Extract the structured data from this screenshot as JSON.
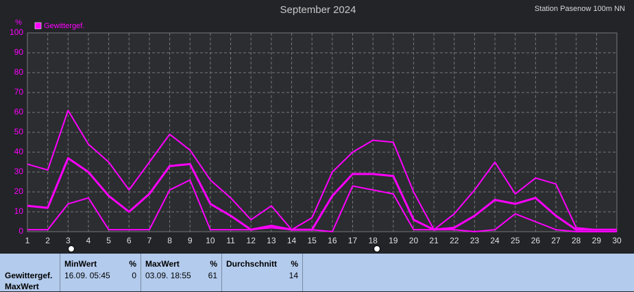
{
  "chart_data": {
    "type": "line",
    "title": "September 2024",
    "station": "Station Pasenow 100m NN",
    "y_label": "%",
    "x": [
      1,
      2,
      3,
      4,
      5,
      6,
      7,
      8,
      9,
      10,
      11,
      12,
      13,
      14,
      15,
      16,
      17,
      18,
      19,
      20,
      21,
      22,
      23,
      24,
      25,
      26,
      27,
      28,
      29,
      30
    ],
    "series": [
      {
        "name": "Gewittergef.",
        "color": "#ff00ff",
        "values": [
          13,
          12,
          37,
          30,
          18,
          10,
          19,
          33,
          34,
          14,
          8,
          1,
          3,
          1,
          1,
          18,
          29,
          29,
          28,
          6,
          1,
          2,
          8,
          16,
          14,
          17,
          8,
          1,
          1,
          1
        ],
        "max": [
          34,
          31,
          61,
          44,
          35,
          21,
          35,
          49,
          41,
          26,
          17,
          6,
          13,
          1,
          7,
          30,
          40,
          46,
          45,
          20,
          1,
          9,
          21,
          35,
          19,
          27,
          24,
          2,
          1,
          1
        ],
        "min": [
          1,
          1,
          14,
          17,
          1,
          1,
          1,
          21,
          26,
          1,
          1,
          1,
          2,
          1,
          1,
          0,
          23,
          21,
          19,
          1,
          1,
          1,
          0,
          1,
          9,
          5,
          1,
          0,
          0,
          0
        ]
      }
    ],
    "xlim": [
      1,
      30
    ],
    "xticks": [
      1,
      2,
      3,
      4,
      5,
      6,
      7,
      8,
      9,
      10,
      11,
      12,
      13,
      14,
      15,
      16,
      17,
      18,
      19,
      20,
      21,
      22,
      23,
      24,
      25,
      26,
      27,
      28,
      29,
      30
    ],
    "ylim": [
      0,
      100
    ],
    "yticks": [
      0,
      10,
      20,
      30,
      40,
      50,
      60,
      70,
      80,
      90,
      100
    ],
    "grid": true
  },
  "stats": {
    "label": [
      "Gewittergef.",
      "MaxWert"
    ],
    "columns": [
      {
        "title": "MinWert",
        "unit": "%",
        "time": "16.09.  05:45",
        "value": "0"
      },
      {
        "title": "MaxWert",
        "unit": "%",
        "time": "03.09.  18:55",
        "value": "61"
      },
      {
        "title": "Durchschnitt",
        "unit": "%",
        "value": "14"
      }
    ]
  }
}
